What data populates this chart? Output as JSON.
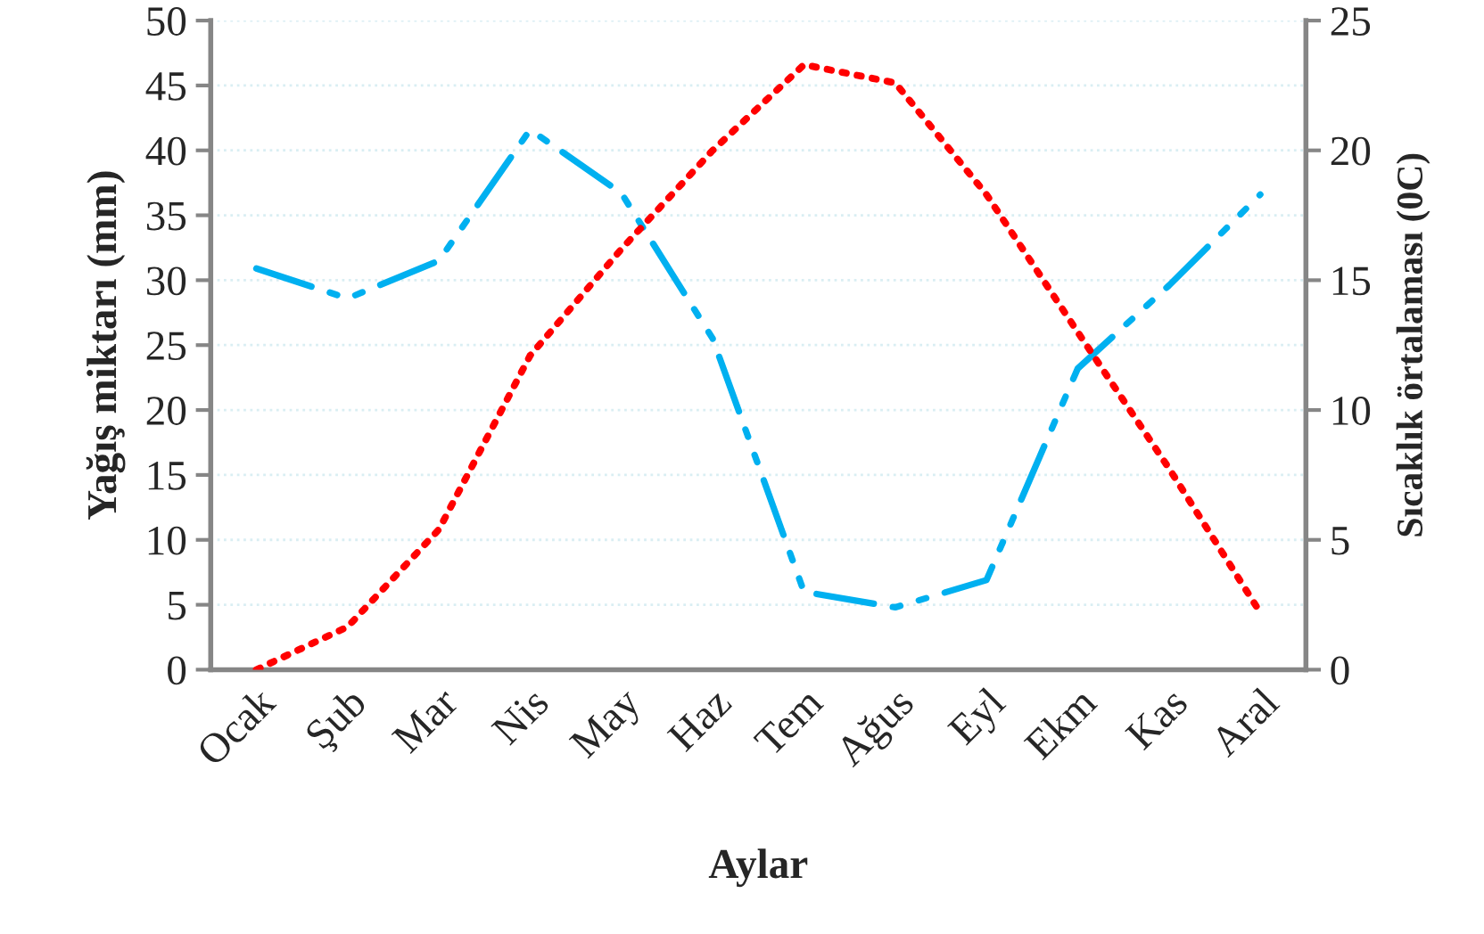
{
  "chart_data": {
    "type": "line",
    "xlabel": "Aylar",
    "ylabel": "Yağış miktarı (mm)",
    "y2label": "Sıcaklık örtalaması (0C)",
    "categories": [
      "Ocak",
      "Şub",
      "Mar",
      "Nis",
      "May",
      "Haz",
      "Tem",
      "Ağus",
      "Eyl",
      "Ekm",
      "Kas",
      "Aral"
    ],
    "series": [
      {
        "color": "#00b0f0",
        "line_style": "dashed",
        "values": [
          30.9,
          28.6,
          31.5,
          41.6,
          36.7,
          25.5,
          6.0,
          4.8,
          6.9,
          23.2,
          29.6,
          36.6
        ]
      },
      {
        "color": "#ff0000",
        "line_style": "dotted",
        "axis": "y2",
        "values": [
          0,
          1.65,
          5.4,
          12.1,
          16.2,
          20.0,
          23.3,
          22.6,
          18.3,
          13.0,
          7.75,
          2.2
        ]
      }
    ],
    "ylim": [
      0,
      50
    ],
    "yticks": [
      0,
      5,
      10,
      15,
      20,
      25,
      30,
      35,
      40,
      45,
      50
    ],
    "y2lim": [
      0,
      25
    ],
    "y2ticks": [
      0,
      5,
      10,
      15,
      20,
      25
    ],
    "grid": "y",
    "legend": false
  }
}
